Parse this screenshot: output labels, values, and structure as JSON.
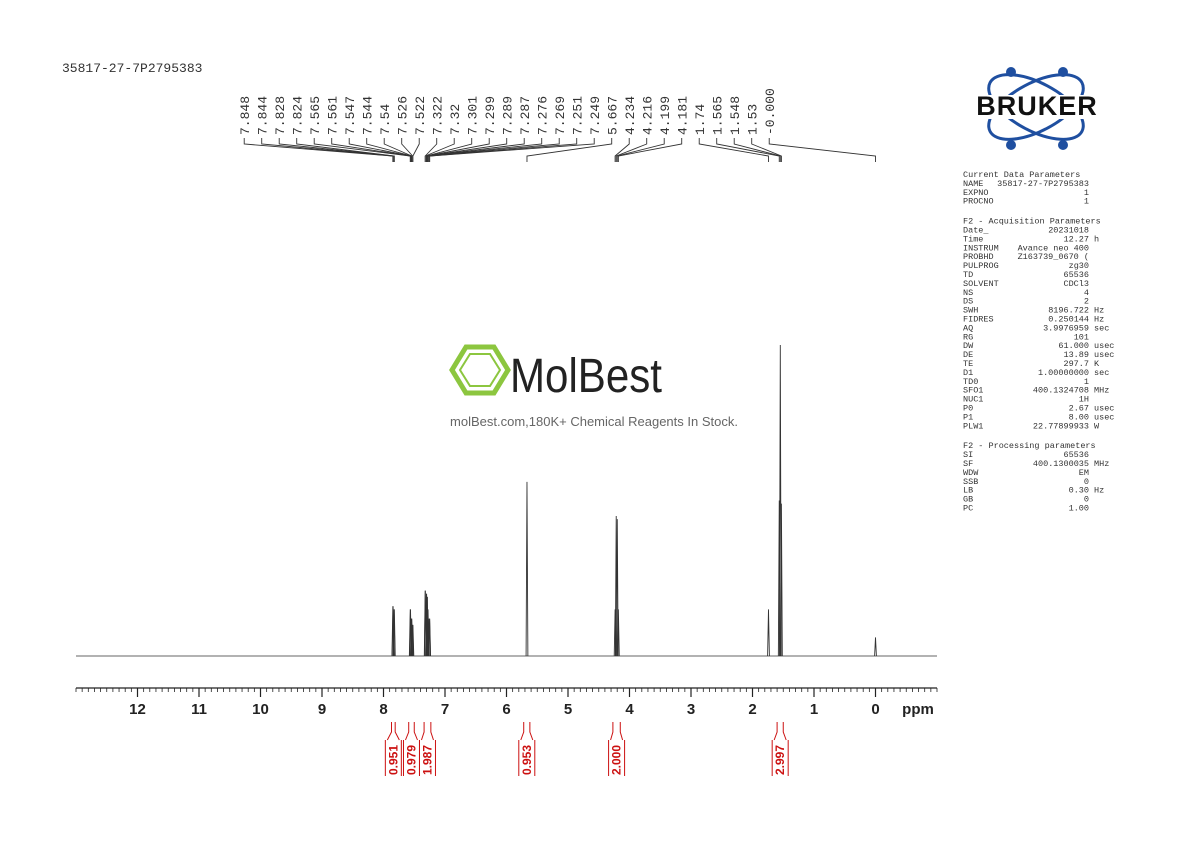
{
  "sample_id": "35817-27-7P2795383",
  "watermark": {
    "brand": "MolBest",
    "tagline": "molBest.com,180K+ Chemical Reagents In Stock."
  },
  "logo": "BRUKER",
  "chart_data": {
    "type": "nmr",
    "x_label": "ppm",
    "xlim": [
      13.0,
      -1.0
    ],
    "xticks": [
      12,
      11,
      10,
      9,
      8,
      7,
      6,
      5,
      4,
      3,
      2,
      1,
      0
    ],
    "ylim": [
      0,
      100
    ],
    "peak_labels": [
      7.848,
      7.844,
      7.828,
      7.824,
      7.565,
      7.561,
      7.547,
      7.544,
      7.54,
      7.526,
      7.522,
      7.322,
      7.32,
      7.301,
      7.299,
      7.289,
      7.287,
      7.276,
      7.269,
      7.251,
      7.249,
      5.667,
      4.234,
      4.216,
      4.199,
      4.181,
      1.74,
      1.565,
      1.548,
      1.53,
      {
        "value": 0,
        "label": "-0.000"
      }
    ],
    "intensities": [
      16,
      16,
      15,
      15,
      15,
      15,
      12,
      12,
      12,
      10,
      10,
      21,
      21,
      20,
      20,
      19,
      19,
      15,
      12,
      12,
      12,
      56,
      15,
      45,
      44,
      15,
      15,
      50,
      100,
      49,
      6
    ],
    "color": "#333333",
    "integral_color": "#cc1111",
    "integrals": [
      {
        "value": "0.951",
        "from": 7.87,
        "to": 7.81
      },
      {
        "value": "0.979",
        "from": 7.59,
        "to": 7.5
      },
      {
        "value": "1.987",
        "from": 7.34,
        "to": 7.23
      },
      {
        "value": "0.953",
        "from": 5.72,
        "to": 5.62
      },
      {
        "value": "2.000",
        "from": 4.27,
        "to": 4.15
      },
      {
        "value": "2.997",
        "from": 1.6,
        "to": 1.5
      }
    ]
  },
  "parameters": [
    {
      "title": "Current Data Parameters",
      "rows": [
        [
          "NAME",
          "35817-27-7P2795383"
        ],
        [
          "EXPNO",
          "1"
        ],
        [
          "PROCNO",
          "1"
        ]
      ]
    },
    {
      "title": "F2 - Acquisition Parameters",
      "rows": [
        [
          "Date_",
          "20231018"
        ],
        [
          "Time",
          "12.27",
          "h"
        ],
        [
          "INSTRUM",
          "Avance neo 400"
        ],
        [
          "PROBHD",
          "Z163739_0670 ("
        ],
        [
          "PULPROG",
          "zg30"
        ],
        [
          "TD",
          "65536"
        ],
        [
          "SOLVENT",
          "CDCl3"
        ],
        [
          "NS",
          "4"
        ],
        [
          "DS",
          "2"
        ],
        [
          "SWH",
          "8196.722",
          "Hz"
        ],
        [
          "FIDRES",
          "0.250144",
          "Hz"
        ],
        [
          "AQ",
          "3.9976959",
          "sec"
        ],
        [
          "RG",
          "101"
        ],
        [
          "DW",
          "61.000",
          "usec"
        ],
        [
          "DE",
          "13.89",
          "usec"
        ],
        [
          "TE",
          "297.7",
          "K"
        ],
        [
          "D1",
          "1.00000000",
          "sec"
        ],
        [
          "TD0",
          "1"
        ],
        [
          "SFO1",
          "400.1324708",
          "MHz"
        ],
        [
          "NUC1",
          "1H"
        ],
        [
          "P0",
          "2.67",
          "usec"
        ],
        [
          "P1",
          "8.00",
          "usec"
        ],
        [
          "PLW1",
          "22.77899933",
          "W"
        ]
      ]
    },
    {
      "title": "F2 - Processing parameters",
      "rows": [
        [
          "SI",
          "65536"
        ],
        [
          "SF",
          "400.1300035",
          "MHz"
        ],
        [
          "WDW",
          "EM"
        ],
        [
          "SSB",
          "0"
        ],
        [
          "LB",
          "0.30",
          "Hz"
        ],
        [
          "GB",
          "0"
        ],
        [
          "PC",
          "1.00"
        ]
      ]
    }
  ]
}
